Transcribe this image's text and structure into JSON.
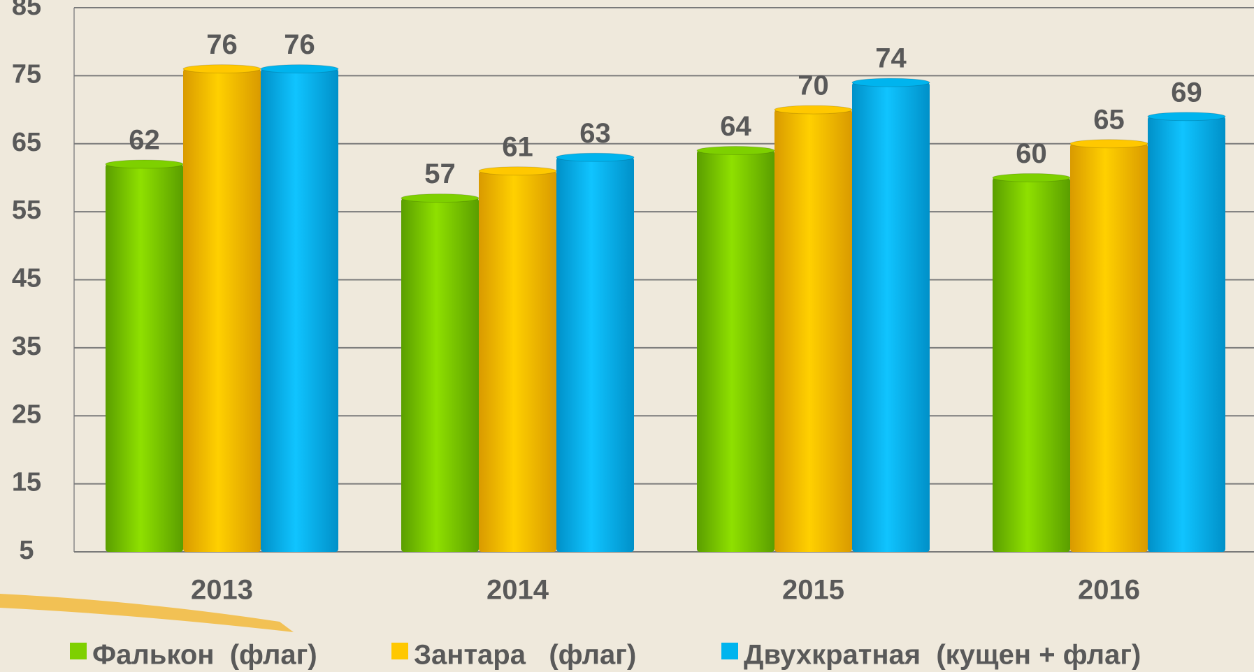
{
  "chart_data": {
    "type": "bar",
    "categories": [
      "2013",
      "2014",
      "2015",
      "2016"
    ],
    "series": [
      {
        "name": "Фалькон  (флаг)",
        "color": "#7ed000",
        "values": [
          62,
          57,
          64,
          60
        ]
      },
      {
        "name": "Зантара   (флаг)",
        "color": "#ffc800",
        "values": [
          76,
          61,
          70,
          65
        ]
      },
      {
        "name": "Двухкратная  (кущен + флаг)",
        "color": "#00b4ee",
        "values": [
          76,
          63,
          74,
          69
        ]
      }
    ],
    "ylim": [
      5,
      85
    ],
    "yticks": [
      5,
      15,
      25,
      35,
      45,
      55,
      65,
      75,
      85
    ],
    "grid": true,
    "legend": "bottom"
  }
}
